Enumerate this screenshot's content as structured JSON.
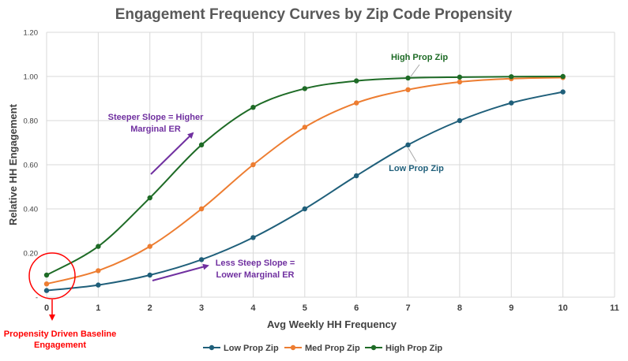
{
  "chart_data": {
    "type": "line",
    "title": "Engagement Frequency Curves by Zip Code Propensity",
    "xlabel": "Avg Weekly HH Frequency",
    "ylabel": "Relative HH Engagement",
    "xlim": [
      0,
      11
    ],
    "ylim": [
      0,
      1.2
    ],
    "x_ticks": [
      "0",
      "1",
      "2",
      "3",
      "4",
      "5",
      "6",
      "7",
      "8",
      "9",
      "10",
      "11"
    ],
    "y_ticks": [
      "-",
      "0.20",
      "0.40",
      "0.60",
      "0.80",
      "1.00",
      "1.20"
    ],
    "grid": true,
    "legend_position": "bottom",
    "x": [
      0,
      1,
      2,
      3,
      4,
      5,
      6,
      7,
      8,
      9,
      10
    ],
    "series": [
      {
        "name": "Low Prop Zip",
        "color": "#1f5f7a",
        "values": [
          0.03,
          0.055,
          0.1,
          0.17,
          0.27,
          0.4,
          0.55,
          0.69,
          0.8,
          0.88,
          0.93
        ]
      },
      {
        "name": "Med Prop Zip",
        "color": "#ed7d31",
        "values": [
          0.06,
          0.12,
          0.23,
          0.4,
          0.6,
          0.77,
          0.88,
          0.94,
          0.975,
          0.99,
          0.995
        ]
      },
      {
        "name": "High Prop Zip",
        "color": "#1e6b26",
        "values": [
          0.1,
          0.23,
          0.45,
          0.69,
          0.86,
          0.945,
          0.98,
          0.993,
          0.997,
          0.999,
          1.0
        ]
      }
    ],
    "annotations": {
      "high_label": "High Prop Zip",
      "low_label": "Low Prop Zip",
      "steep_line1": "Steeper Slope = Higher",
      "steep_line2": "Marginal ER",
      "less_line1": "Less Steep Slope =",
      "less_line2": "Lower Marginal ER",
      "baseline_line1": "Propensity Driven Baseline",
      "baseline_line2": "Engagement"
    },
    "colors": {
      "annotation_purple": "#7030a0",
      "baseline_red": "#ff0000",
      "high_label": "#1e6b26",
      "low_label": "#1f5f7a"
    }
  }
}
